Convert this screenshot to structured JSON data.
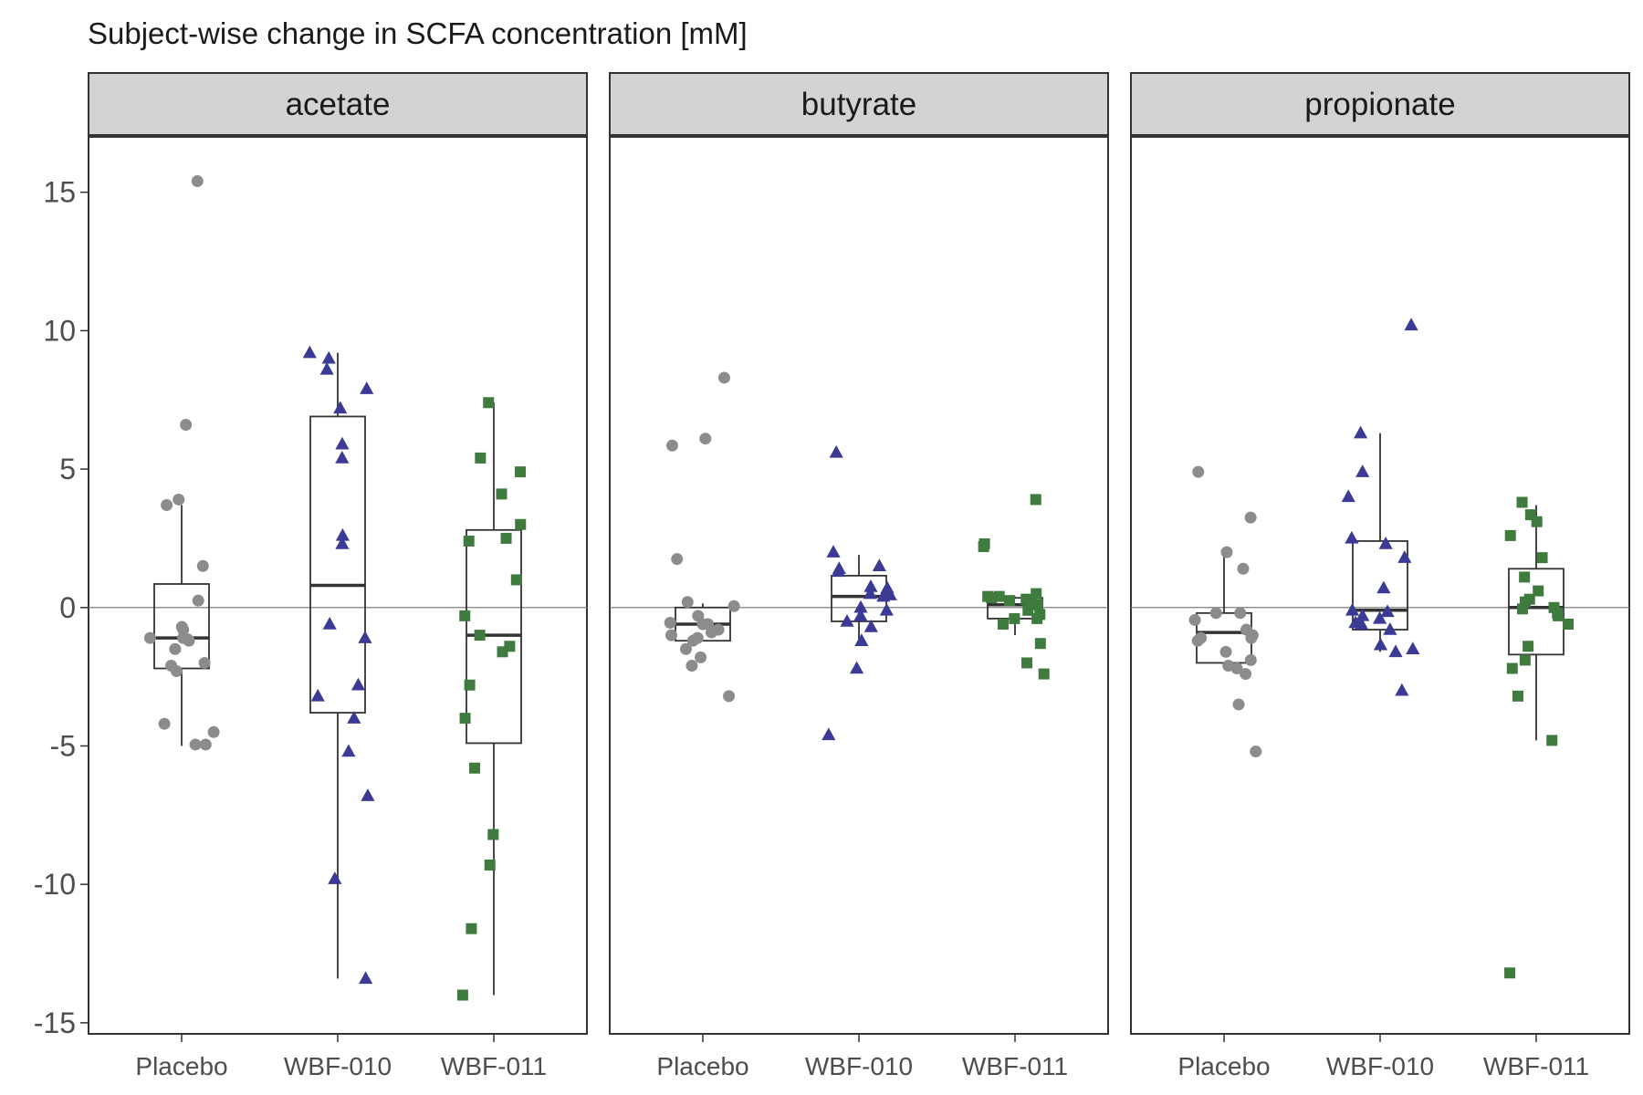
{
  "chart_data": {
    "type": "box",
    "title": "Subject-wise change in SCFA concentration [mM]",
    "xlabel": "",
    "ylabel": "",
    "ylim": [
      -15.4,
      17.0
    ],
    "yticks": [
      15,
      10,
      5,
      0,
      -5,
      -10,
      -15
    ],
    "ytick_labels": [
      "15",
      "10",
      "5",
      "0",
      "-5",
      "-10",
      "-15"
    ],
    "reference_line": 0,
    "grid": false,
    "legend": "none",
    "categories": [
      "Placebo",
      "WBF-010",
      "WBF-011"
    ],
    "group_style": {
      "Placebo": {
        "marker": "circle",
        "color": "#8c8c8c"
      },
      "WBF-010": {
        "marker": "triangle",
        "color": "#3b3b96"
      },
      "WBF-011": {
        "marker": "square",
        "color": "#3f7a3f"
      }
    },
    "panels": [
      {
        "name": "acetate",
        "groups": [
          {
            "group": "Placebo",
            "box": {
              "whisker_low": -5.0,
              "q1": -2.2,
              "median": -1.1,
              "q3": 0.85,
              "whisker_high": 3.7
            },
            "points": [
              15.4,
              6.6,
              3.9,
              3.7,
              1.5,
              0.25,
              -0.7,
              -0.8,
              -1.1,
              -1.1,
              -1.15,
              -1.2,
              -1.5,
              -2.0,
              -2.1,
              -2.3,
              -4.2,
              -4.5,
              -4.95,
              -4.95
            ]
          },
          {
            "group": "WBF-010",
            "box": {
              "whisker_low": -13.4,
              "q1": -3.8,
              "median": 0.8,
              "q3": 6.9,
              "whisker_high": 9.2
            },
            "points": [
              9.2,
              9.0,
              8.6,
              7.9,
              7.2,
              5.9,
              5.4,
              2.6,
              2.3,
              -0.6,
              -1.1,
              -2.8,
              -3.2,
              -4.0,
              -5.2,
              -6.8,
              -9.8,
              -13.4
            ]
          },
          {
            "group": "WBF-011",
            "box": {
              "whisker_low": -14.0,
              "q1": -4.9,
              "median": -1.0,
              "q3": 2.8,
              "whisker_high": 7.4
            },
            "points": [
              7.4,
              5.4,
              4.9,
              4.1,
              3.0,
              2.5,
              2.4,
              1.0,
              -0.3,
              -1.0,
              -1.4,
              -1.6,
              -2.8,
              -4.0,
              -5.8,
              -8.2,
              -9.3,
              -11.6,
              -14.0
            ]
          }
        ]
      },
      {
        "name": "butyrate",
        "groups": [
          {
            "group": "Placebo",
            "box": {
              "whisker_low": -1.2,
              "q1": -1.2,
              "median": -0.6,
              "q3": 0.0,
              "whisker_high": 0.15
            },
            "points": [
              8.3,
              6.1,
              5.85,
              1.75,
              0.2,
              0.05,
              -0.3,
              -0.55,
              -0.6,
              -0.6,
              -0.8,
              -0.9,
              -1.0,
              -1.1,
              -1.2,
              -1.5,
              -1.8,
              -2.1,
              -3.2
            ]
          },
          {
            "group": "WBF-010",
            "box": {
              "whisker_low": -1.2,
              "q1": -0.5,
              "median": 0.4,
              "q3": 1.15,
              "whisker_high": 1.9
            },
            "points": [
              5.6,
              2.0,
              1.5,
              1.4,
              1.3,
              0.75,
              0.7,
              0.5,
              0.45,
              0.4,
              0.0,
              -0.1,
              -0.3,
              -0.5,
              -0.7,
              -1.2,
              -2.2,
              -4.6
            ]
          },
          {
            "group": "WBF-011",
            "box": {
              "whisker_low": -1.0,
              "q1": -0.4,
              "median": 0.1,
              "q3": 0.35,
              "whisker_high": 0.4
            },
            "points": [
              3.9,
              2.3,
              2.2,
              0.5,
              0.4,
              0.4,
              0.35,
              0.3,
              0.25,
              0.2,
              0.1,
              -0.1,
              -0.25,
              -0.4,
              -0.4,
              -0.6,
              -1.3,
              -2.0,
              -2.4
            ]
          }
        ]
      },
      {
        "name": "propionate",
        "groups": [
          {
            "group": "Placebo",
            "box": {
              "whisker_low": -2.2,
              "q1": -2.0,
              "median": -0.9,
              "q3": -0.2,
              "whisker_high": 2.0
            },
            "points": [
              4.9,
              3.25,
              2.0,
              1.4,
              -0.2,
              -0.2,
              -0.45,
              -0.8,
              -1.0,
              -1.1,
              -1.1,
              -1.2,
              -1.6,
              -1.9,
              -2.1,
              -2.2,
              -2.4,
              -3.5,
              -5.2
            ]
          },
          {
            "group": "WBF-010",
            "box": {
              "whisker_low": -1.6,
              "q1": -0.8,
              "median": -0.1,
              "q3": 2.4,
              "whisker_high": 6.3
            },
            "points": [
              10.2,
              6.3,
              4.9,
              4.0,
              2.5,
              2.3,
              1.8,
              0.7,
              -0.1,
              -0.15,
              -0.3,
              -0.4,
              -0.55,
              -0.6,
              -0.8,
              -1.35,
              -1.5,
              -1.6,
              -3.0
            ]
          },
          {
            "group": "WBF-011",
            "box": {
              "whisker_low": -4.8,
              "q1": -1.7,
              "median": 0.0,
              "q3": 1.4,
              "whisker_high": 3.7
            },
            "points": [
              3.8,
              3.35,
              3.1,
              2.6,
              1.8,
              1.1,
              0.6,
              0.3,
              0.2,
              0.0,
              -0.05,
              -0.2,
              -0.3,
              -0.6,
              -1.4,
              -1.9,
              -2.2,
              -3.2,
              -4.8,
              -13.2
            ]
          }
        ]
      }
    ]
  }
}
